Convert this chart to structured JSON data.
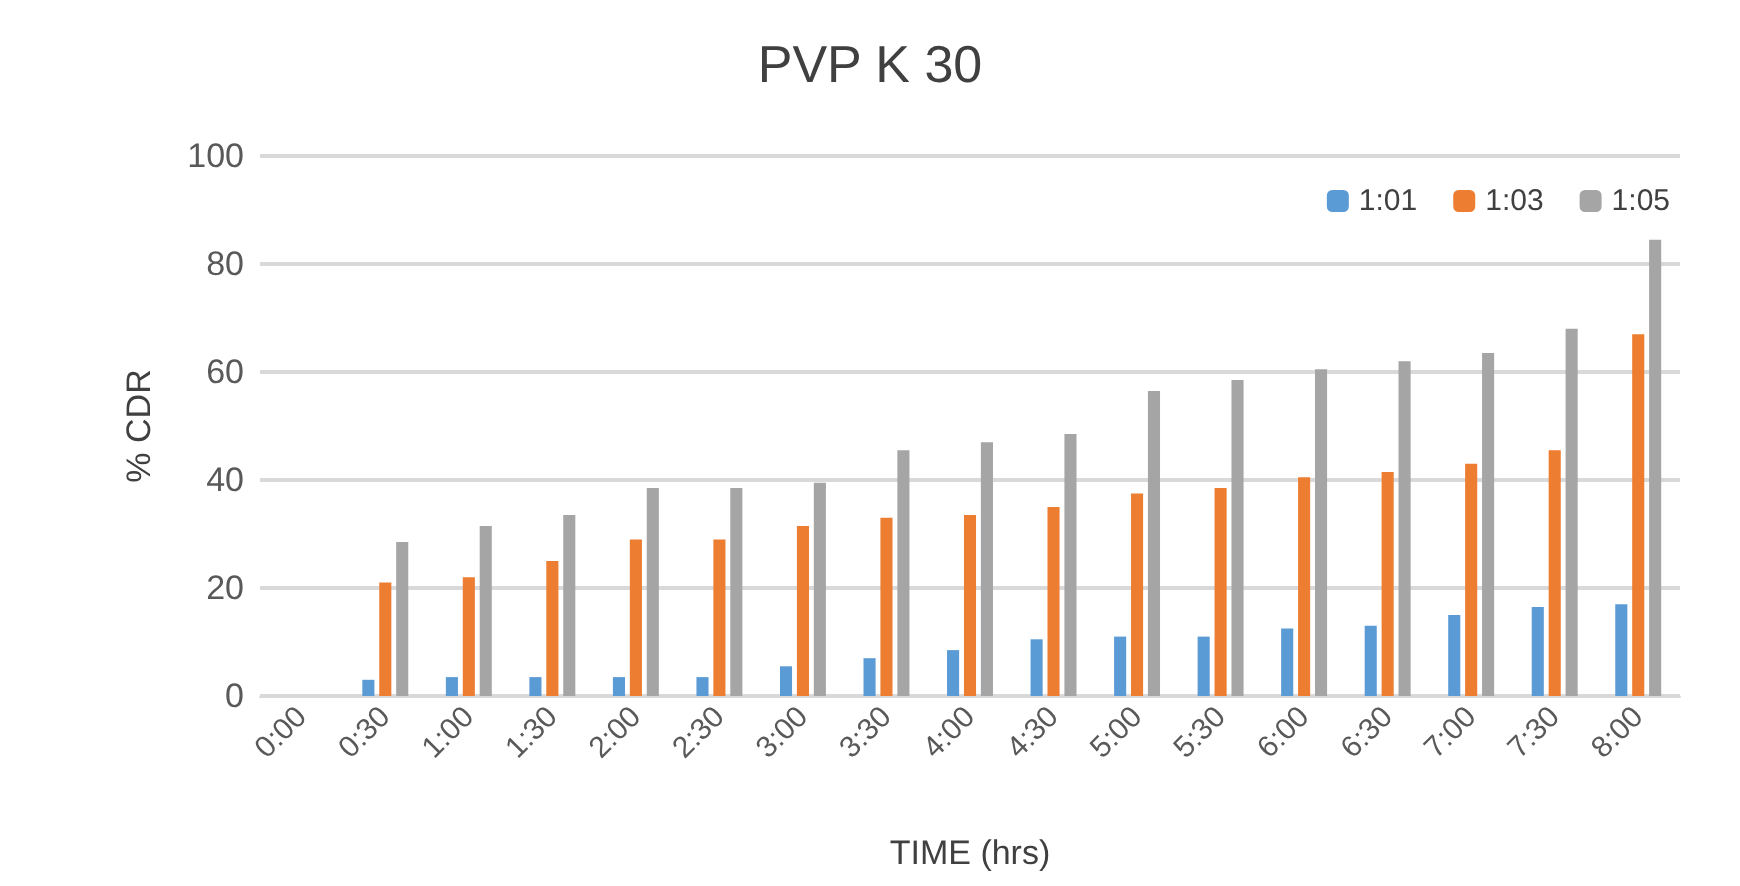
{
  "chart_data": {
    "type": "bar",
    "title": "PVP K 30",
    "xlabel": "TIME (hrs)",
    "ylabel": "% CDR",
    "categories": [
      "0:00",
      "0:30",
      "1:00",
      "1:30",
      "2:00",
      "2:30",
      "3:00",
      "3:30",
      "4:00",
      "4:30",
      "5:00",
      "5:30",
      "6:00",
      "6:30",
      "7:00",
      "7:30",
      "8:00"
    ],
    "series": [
      {
        "name": "1:01",
        "color": "#5b9bd5",
        "values": [
          0,
          3,
          3.5,
          3.5,
          3.5,
          3.5,
          5.5,
          7,
          8.5,
          10.5,
          11,
          11,
          12.5,
          13,
          15,
          16.5,
          17
        ]
      },
      {
        "name": "1:03",
        "color": "#ed7d31",
        "values": [
          0,
          21,
          22,
          25,
          29,
          29,
          31.5,
          33,
          33.5,
          35,
          37.5,
          38.5,
          40.5,
          41.5,
          43,
          45.5,
          67
        ]
      },
      {
        "name": "1:05",
        "color": "#a5a5a5",
        "values": [
          0,
          28.5,
          31.5,
          33.5,
          38.5,
          38.5,
          39.5,
          45.5,
          47,
          48.5,
          56.5,
          58.5,
          60.5,
          62,
          63.5,
          68,
          84.5
        ]
      }
    ],
    "ylim": [
      0,
      100
    ],
    "yticks": [
      0,
      20,
      40,
      60,
      80,
      100
    ],
    "grid": "y",
    "legend": "top right"
  }
}
